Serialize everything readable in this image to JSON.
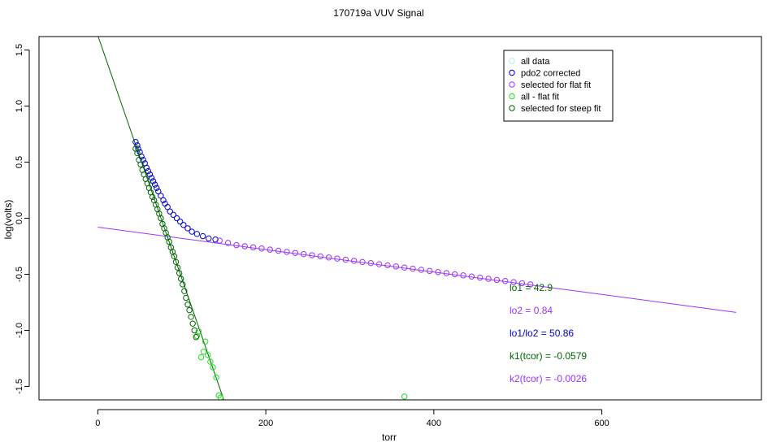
{
  "chart_data": {
    "type": "scatter",
    "title": "170719a   VUV Signal",
    "xlabel": "torr",
    "ylabel": "log(volts)",
    "xlim": [
      -70,
      790
    ],
    "ylim": [
      -1.62,
      1.62
    ],
    "x_ticks": [
      0,
      200,
      400,
      600
    ],
    "x_tick_labels": [
      "0",
      "200",
      "400",
      "600"
    ],
    "y_ticks": [
      1.5,
      1.0,
      0.5,
      0.0,
      -0.5,
      -1.0,
      -1.5
    ],
    "y_tick_labels": [
      "1.5",
      "1.0",
      "0.5",
      "0.0",
      "-0.5",
      "-1.0",
      "-1.5"
    ],
    "grid": false,
    "legend_position": "top-right",
    "legend": [
      {
        "label": "all data",
        "color": "#aaeeee"
      },
      {
        "label": "pdo2 corrected",
        "color": "#0000cc"
      },
      {
        "label": "selected for flat fit",
        "color": "#9933ff"
      },
      {
        "label": "all - flat fit",
        "color": "#22dd22"
      },
      {
        "label": "selected for steep fit",
        "color": "#006600"
      }
    ],
    "series": [
      {
        "name": "pdo2 corrected",
        "color": "#0000cc",
        "x": [
          45,
          47,
          48,
          50,
          52,
          54,
          56,
          58,
          60,
          62,
          64,
          66,
          68,
          70,
          72,
          75,
          78,
          80,
          83,
          86,
          90,
          94,
          98,
          102,
          107,
          112,
          118,
          125,
          132,
          140
        ],
        "y": [
          0.68,
          0.65,
          0.62,
          0.59,
          0.55,
          0.52,
          0.49,
          0.45,
          0.42,
          0.39,
          0.36,
          0.33,
          0.3,
          0.27,
          0.24,
          0.2,
          0.16,
          0.13,
          0.1,
          0.06,
          0.03,
          0.0,
          -0.03,
          -0.06,
          -0.09,
          -0.12,
          -0.14,
          -0.16,
          -0.18,
          -0.19
        ]
      },
      {
        "name": "selected for flat fit",
        "color": "#9933ff",
        "x": [
          145,
          155,
          165,
          175,
          185,
          195,
          205,
          215,
          225,
          235,
          245,
          255,
          265,
          275,
          285,
          295,
          305,
          315,
          325,
          335,
          345,
          355,
          365,
          375,
          385,
          395,
          405,
          415,
          425,
          435,
          445,
          455,
          465,
          475,
          485,
          495,
          505,
          515
        ],
        "y": [
          -0.2,
          -0.22,
          -0.24,
          -0.25,
          -0.26,
          -0.27,
          -0.28,
          -0.29,
          -0.3,
          -0.31,
          -0.32,
          -0.33,
          -0.34,
          -0.35,
          -0.36,
          -0.37,
          -0.38,
          -0.39,
          -0.4,
          -0.41,
          -0.42,
          -0.43,
          -0.44,
          -0.45,
          -0.46,
          -0.47,
          -0.48,
          -0.49,
          -0.5,
          -0.51,
          -0.52,
          -0.53,
          -0.54,
          -0.55,
          -0.56,
          -0.57,
          -0.58,
          -0.59
        ]
      },
      {
        "name": "all - flat fit",
        "color": "#22dd22",
        "x": [
          118,
          120,
          123,
          126,
          128,
          131,
          134,
          137,
          141,
          144,
          146,
          365
        ],
        "y": [
          -1.05,
          -1.01,
          -1.24,
          -1.19,
          -1.1,
          -1.22,
          -1.28,
          -1.33,
          -1.42,
          -1.58,
          -1.6,
          -1.59
        ]
      },
      {
        "name": "selected for steep fit",
        "color": "#006600",
        "x": [
          45,
          47,
          49,
          51,
          53,
          55,
          57,
          59,
          61,
          63,
          65,
          67,
          69,
          71,
          73,
          75,
          77,
          79,
          81,
          83,
          85,
          87,
          89,
          91,
          93,
          95,
          97,
          99,
          101,
          103,
          105,
          107,
          109,
          111,
          113,
          115,
          117
        ],
        "y": [
          0.62,
          0.58,
          0.52,
          0.48,
          0.43,
          0.39,
          0.35,
          0.31,
          0.27,
          0.23,
          0.19,
          0.16,
          0.12,
          0.08,
          0.04,
          0.0,
          -0.05,
          -0.09,
          -0.13,
          -0.17,
          -0.21,
          -0.26,
          -0.3,
          -0.34,
          -0.39,
          -0.44,
          -0.49,
          -0.54,
          -0.59,
          -0.65,
          -0.71,
          -0.77,
          -0.82,
          -0.88,
          -0.94,
          -1.0,
          -1.06
        ]
      }
    ],
    "fit_lines": [
      {
        "name": "flat fit",
        "color": "#9933ff",
        "x": [
          0,
          760
        ],
        "y": [
          -0.08,
          -0.84
        ]
      },
      {
        "name": "steep fit",
        "color": "#006600",
        "x": [
          0,
          150
        ],
        "y": [
          1.63,
          -1.62
        ]
      }
    ],
    "annotations": [
      {
        "text": "lo1 = 42.9",
        "color": "#006600"
      },
      {
        "text": "lo2 = 0.84",
        "color": "#9933ff"
      },
      {
        "text": "lo1/lo2 = 50.86",
        "color": "#0000cc"
      },
      {
        "text": "k1(tcor) = -0.0579",
        "color": "#006600"
      },
      {
        "text": "k2(tcor) = -0.0026",
        "color": "#9933ff"
      }
    ]
  }
}
